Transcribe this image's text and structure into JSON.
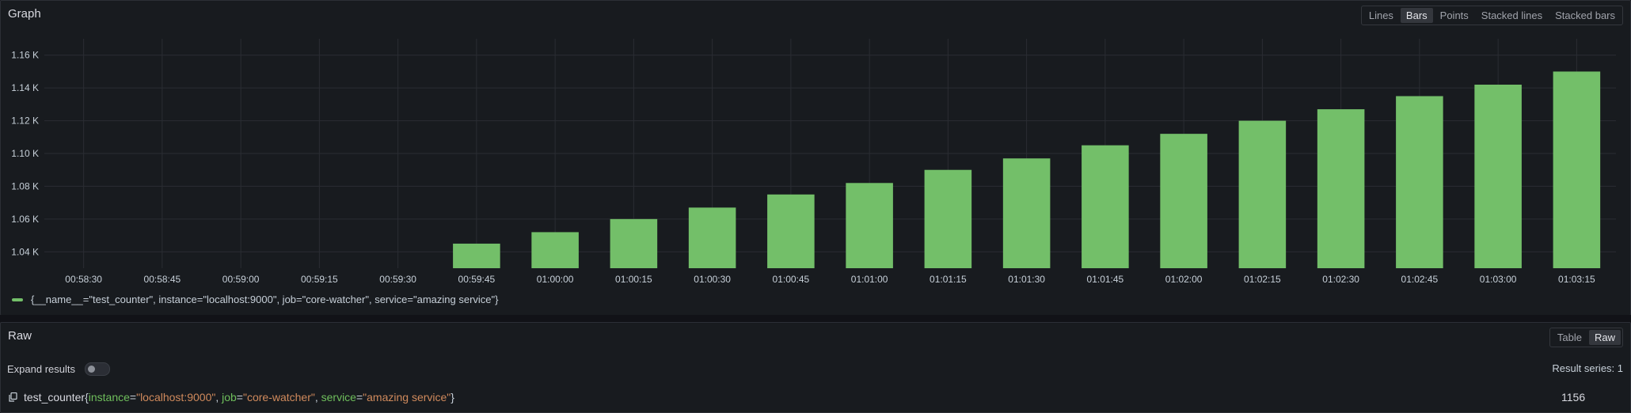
{
  "graph": {
    "title": "Graph",
    "modes": [
      {
        "label": "Lines",
        "active": false
      },
      {
        "label": "Bars",
        "active": true
      },
      {
        "label": "Points",
        "active": false
      },
      {
        "label": "Stacked lines",
        "active": false
      },
      {
        "label": "Stacked bars",
        "active": false
      }
    ],
    "legend": "{__name__=\"test_counter\", instance=\"localhost:9000\", job=\"core-watcher\", service=\"amazing service\"}"
  },
  "chart_data": {
    "type": "bar",
    "x": [
      "00:58:30",
      "00:58:45",
      "00:59:00",
      "00:59:15",
      "00:59:30",
      "00:59:45",
      "01:00:00",
      "01:00:15",
      "01:00:30",
      "01:00:45",
      "01:01:00",
      "01:01:15",
      "01:01:30",
      "01:01:45",
      "01:02:00",
      "01:02:15",
      "01:02:30",
      "01:02:45",
      "01:03:00",
      "01:03:15"
    ],
    "series": [
      {
        "name": "{__name__=\"test_counter\", instance=\"localhost:9000\", job=\"core-watcher\", service=\"amazing service\"}",
        "color": "#73bf69",
        "values": [
          null,
          null,
          null,
          null,
          null,
          1045,
          1052,
          1060,
          1067,
          1075,
          1082,
          1090,
          1097,
          1105,
          1112,
          1120,
          1127,
          1135,
          1142,
          1150
        ]
      }
    ],
    "yticks": [
      "1.04 K",
      "1.06 K",
      "1.08 K",
      "1.10 K",
      "1.12 K",
      "1.14 K",
      "1.16 K"
    ],
    "ylim": [
      1030,
      1170
    ],
    "grid": true
  },
  "raw": {
    "title": "Raw",
    "modes": [
      {
        "label": "Table",
        "active": false
      },
      {
        "label": "Raw",
        "active": true
      }
    ],
    "expand_label": "Expand results",
    "result_series": "Result series: 1",
    "metric_name": "test_counter",
    "labels": [
      {
        "key": "instance",
        "value": "\"localhost:9000\""
      },
      {
        "key": "job",
        "value": "\"core-watcher\""
      },
      {
        "key": "service",
        "value": "\"amazing service\""
      }
    ],
    "value": "1156"
  }
}
